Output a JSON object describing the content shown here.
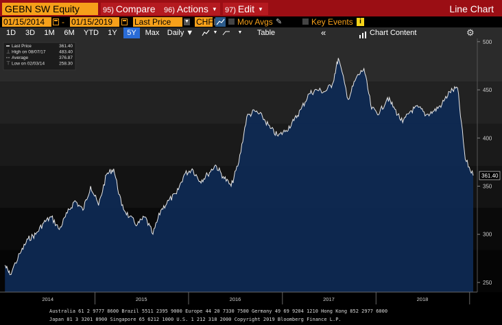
{
  "toolbar": {
    "ticker": "GEBN SW Equity",
    "compare": {
      "num": "95)",
      "label": "Compare"
    },
    "actions": {
      "num": "96)",
      "label": "Actions",
      "dd": "▼"
    },
    "edit": {
      "num": "97)",
      "label": "Edit",
      "dd": "▼"
    },
    "chart_type": "Line Chart"
  },
  "settings": {
    "start_date": "01/15/2014",
    "end_date": "01/15/2019",
    "dash": "-",
    "field": "Last Price",
    "currency": "CHF",
    "mov_avgs": "Mov Avgs",
    "key_events": "Key Events",
    "dd_glyph": "▼"
  },
  "periods": [
    {
      "label": "1D",
      "active": false
    },
    {
      "label": "3D",
      "active": false
    },
    {
      "label": "1M",
      "active": false
    },
    {
      "label": "6M",
      "active": false
    },
    {
      "label": "YTD",
      "active": false
    },
    {
      "label": "1Y",
      "active": false
    },
    {
      "label": "5Y",
      "active": true
    },
    {
      "label": "Max",
      "active": false
    }
  ],
  "frequency": "Daily ▼",
  "table_label": "Table",
  "collapse_glyph": "«",
  "chart_content_label": "Chart Content",
  "legend": [
    {
      "label": "Last Price",
      "value": "361.40"
    },
    {
      "label": "High on 08/07/17",
      "value": "483.40"
    },
    {
      "label": "Average",
      "value": "376.87"
    },
    {
      "label": "Low on 02/03/14",
      "value": "258.30"
    }
  ],
  "chart_data": {
    "type": "area",
    "y_ticks": [
      250,
      300,
      350,
      400,
      450,
      500
    ],
    "ylim": [
      240,
      502
    ],
    "x_ticks": [
      "2014",
      "2015",
      "2016",
      "2017",
      "2018"
    ],
    "last_price_label": "361.40",
    "x": [
      "2014-01-15",
      "2014-02-03",
      "2014-03",
      "2014-04",
      "2014-05",
      "2014-06",
      "2014-07",
      "2014-08",
      "2014-09",
      "2014-10",
      "2014-11",
      "2014-12",
      "2015-01",
      "2015-02",
      "2015-03",
      "2015-04",
      "2015-05",
      "2015-06",
      "2015-07",
      "2015-08",
      "2015-09",
      "2015-10",
      "2015-11",
      "2015-12",
      "2016-01",
      "2016-02",
      "2016-03",
      "2016-04",
      "2016-05",
      "2016-06",
      "2016-07",
      "2016-08",
      "2016-09",
      "2016-10",
      "2016-11",
      "2016-12",
      "2017-01",
      "2017-02",
      "2017-03",
      "2017-04",
      "2017-05",
      "2017-06",
      "2017-07",
      "2017-08-07",
      "2017-09",
      "2017-10",
      "2017-11",
      "2017-12",
      "2018-01",
      "2018-02",
      "2018-03",
      "2018-04",
      "2018-05",
      "2018-06",
      "2018-07",
      "2018-08",
      "2018-09",
      "2018-10",
      "2018-11",
      "2018-12",
      "2019-01-15"
    ],
    "values": [
      268,
      258,
      280,
      295,
      300,
      312,
      318,
      305,
      322,
      335,
      325,
      350,
      330,
      362,
      368,
      330,
      318,
      310,
      318,
      300,
      325,
      335,
      342,
      362,
      368,
      355,
      362,
      372,
      360,
      350,
      375,
      422,
      428,
      422,
      410,
      402,
      408,
      418,
      430,
      446,
      450,
      448,
      456,
      483,
      440,
      462,
      472,
      430,
      426,
      442,
      430,
      416,
      428,
      432,
      424,
      428,
      435,
      448,
      452,
      378,
      361
    ]
  },
  "footer": {
    "line1": "Australia 61 2 9777 8600 Brazil 5511 2395 9000 Europe 44 20 7330 7500 Germany 49 69 9204 1210 Hong Kong 852 2977 6000",
    "line2": "Japan 81 3 3201 8900       Singapore 65 6212 1000       U.S. 1 212 318 2000         Copyright 2019 Bloomberg Finance L.P."
  },
  "colors": {
    "brand_bar": "#9b0e14",
    "input_amber": "#f6a01a",
    "active_period": "#2a6cd6",
    "area_fill": "#0e2a55",
    "line": "#e8e8e8"
  }
}
